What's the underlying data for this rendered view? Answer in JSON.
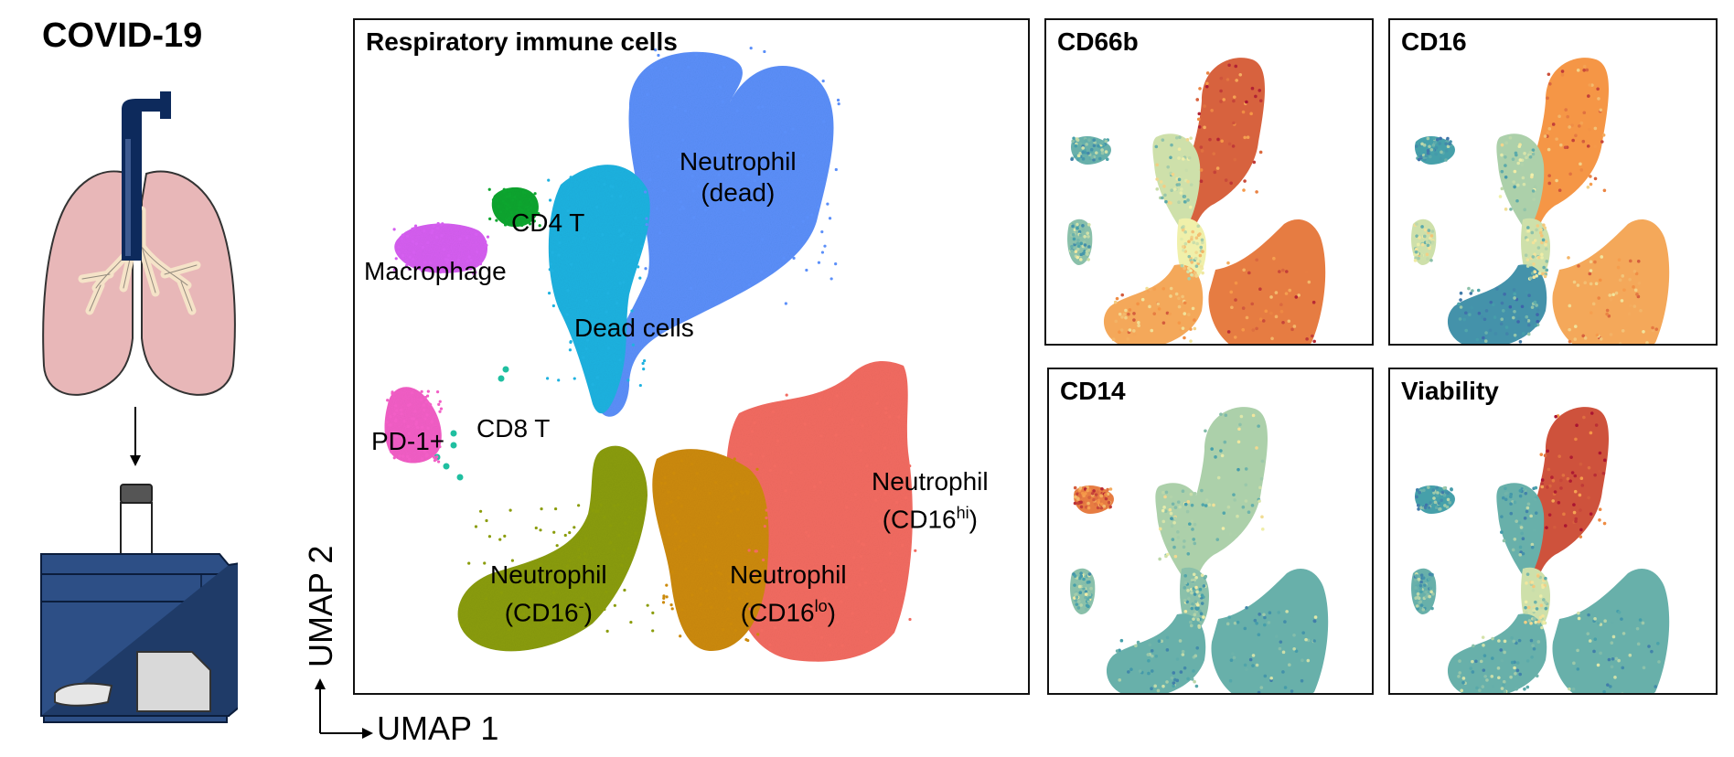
{
  "left_title": "COVID-19",
  "main_panel": {
    "title": "Respiratory immune cells",
    "clusters": [
      {
        "name": "Neutrophil (dead)",
        "line1": "Neutrophil",
        "line2": "(dead)",
        "color": "#5b8ff9"
      },
      {
        "name": "Dead cells",
        "line1": "Dead cells",
        "line2": "",
        "color": "#1fb2e0"
      },
      {
        "name": "CD4 T",
        "line1": "CD4 T",
        "line2": "",
        "color": "#0da52f"
      },
      {
        "name": "Macrophage",
        "line1": "Macrophage",
        "line2": "",
        "color": "#d55ef0"
      },
      {
        "name": "PD-1+",
        "line1": "PD-1+",
        "line2": "",
        "color": "#f25ec6"
      },
      {
        "name": "CD8 T",
        "line1": "CD8 T",
        "line2": "",
        "color": "#1fbfa0"
      },
      {
        "name": "Neutrophil (CD16-)",
        "line1": "Neutrophil",
        "line2a": "(CD16",
        "sup": "-",
        "line2b": ")",
        "color": "#8a9c0a"
      },
      {
        "name": "Neutrophil (CD16lo)",
        "line1": "Neutrophil",
        "line2a": "(CD16",
        "sup": "lo",
        "line2b": ")",
        "color": "#cc8a0a"
      },
      {
        "name": "Neutrophil (CD16hi)",
        "line1": "Neutrophil",
        "line2a": "(CD16",
        "sup": "hi",
        "line2b": ")",
        "color": "#f26b61"
      }
    ]
  },
  "axes": {
    "x": "UMAP 1",
    "y": "UMAP 2"
  },
  "marker_panels": [
    {
      "title": "CD66b",
      "profile": "cd66b"
    },
    {
      "title": "CD16",
      "profile": "cd16"
    },
    {
      "title": "CD14",
      "profile": "cd14"
    },
    {
      "title": "Viability",
      "profile": "viability"
    }
  ]
}
